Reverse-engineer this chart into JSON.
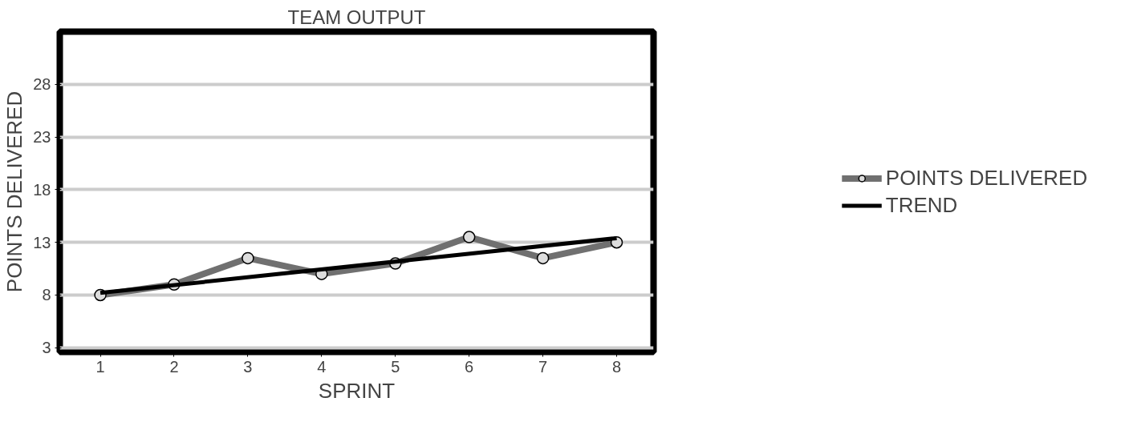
{
  "chart_data": {
    "type": "line",
    "title": "TEAM OUTPUT",
    "xlabel": "SPRINT",
    "ylabel": "POINTS DELIVERED",
    "x": [
      1,
      2,
      3,
      4,
      5,
      6,
      7,
      8
    ],
    "series": [
      {
        "name": "POINTS DELIVERED",
        "color": "#707070",
        "marker": "circle",
        "values": [
          8,
          9,
          11.5,
          10,
          11,
          13.5,
          11.5,
          13
        ]
      },
      {
        "name": "TREND",
        "color": "#000000",
        "marker": "none",
        "x": [
          1,
          8
        ],
        "values": [
          8.2,
          13.4
        ]
      }
    ],
    "xlim": [
      0.45,
      8.5
    ],
    "ylim": [
      2.6,
      33
    ],
    "xticks": [
      1,
      2,
      3,
      4,
      5,
      6,
      7,
      8
    ],
    "yticks": [
      3,
      8,
      13,
      18,
      23,
      28
    ],
    "grid": "y",
    "legend": "right",
    "line_style": "solid"
  }
}
